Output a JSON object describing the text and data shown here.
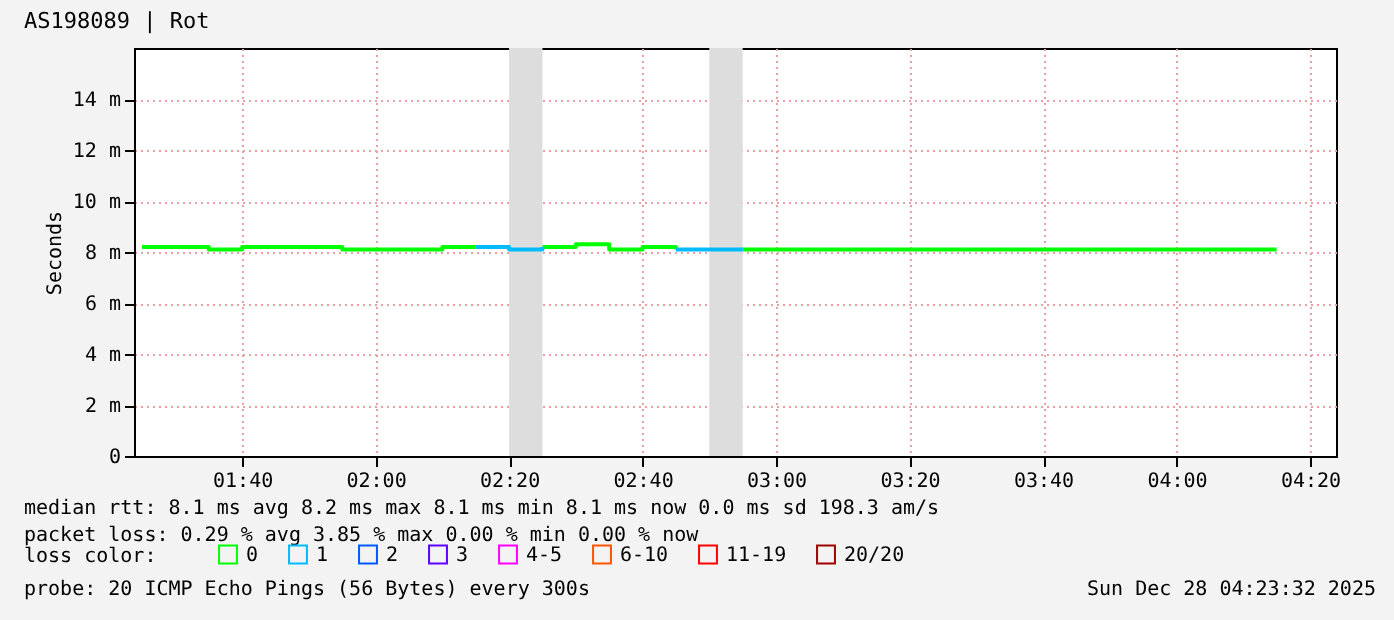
{
  "chart_data": {
    "type": "step",
    "title": "AS198089 | Rot",
    "ylabel": "Seconds",
    "legend_title": "loss color:",
    "x": [
      1.4167,
      1.5,
      1.5833,
      1.6667,
      1.75,
      1.8333,
      1.9167,
      2,
      2.0833,
      2.1667,
      2.25,
      2.3333,
      2.4167,
      2.5,
      2.5833,
      2.6667,
      2.75,
      2.8333,
      2.9167,
      3,
      3.0833,
      3.1667,
      3.25,
      3.3333,
      3.4167,
      3.5,
      3.5833,
      3.6667,
      3.75,
      3.8333,
      3.9167,
      4,
      4.0833,
      4.1667,
      4.25
    ],
    "series": [
      {
        "name": "0",
        "color": "#00ff00",
        "values": [
          8.2,
          8.2,
          8.1,
          8.2,
          8.2,
          8.2,
          8.1,
          8.1,
          8.1,
          8.2,
          8.2,
          null,
          8.2,
          8.3,
          8.1,
          8.2,
          8.1,
          null,
          8.1,
          8.1,
          8.1,
          8.1,
          8.1,
          8.1,
          8.1,
          8.1,
          8.1,
          8.1,
          8.1,
          8.1,
          8.1,
          8.1,
          8.1,
          8.1,
          8.1
        ]
      },
      {
        "name": "1",
        "color": "#00bbff",
        "values": [
          null,
          null,
          null,
          null,
          null,
          null,
          null,
          null,
          null,
          null,
          8.2,
          8.1,
          8.2,
          null,
          null,
          null,
          8.1,
          8.1,
          8.1,
          null,
          null,
          null,
          null,
          null,
          null,
          null,
          null,
          null,
          null,
          null,
          null,
          null,
          null,
          null,
          null
        ]
      },
      {
        "name": "2",
        "color": "#0059ff",
        "values": [
          null,
          null,
          null,
          null,
          null,
          null,
          null,
          null,
          null,
          null,
          null,
          null,
          null,
          null,
          null,
          null,
          null,
          null,
          null,
          null,
          null,
          null,
          null,
          null,
          null,
          null,
          null,
          null,
          null,
          null,
          null,
          null,
          null,
          null,
          null
        ]
      },
      {
        "name": "3",
        "color": "#5e00ff",
        "values": [
          null,
          null,
          null,
          null,
          null,
          null,
          null,
          null,
          null,
          null,
          null,
          null,
          null,
          null,
          null,
          null,
          null,
          null,
          null,
          null,
          null,
          null,
          null,
          null,
          null,
          null,
          null,
          null,
          null,
          null,
          null,
          null,
          null,
          null,
          null
        ]
      },
      {
        "name": "4-5",
        "color": "#ff00ff",
        "values": [
          null,
          null,
          null,
          null,
          null,
          null,
          null,
          null,
          null,
          null,
          null,
          null,
          null,
          null,
          null,
          null,
          null,
          null,
          null,
          null,
          null,
          null,
          null,
          null,
          null,
          null,
          null,
          null,
          null,
          null,
          null,
          null,
          null,
          null,
          null
        ]
      },
      {
        "name": "6-10",
        "color": "#ff5500",
        "values": [
          null,
          null,
          null,
          null,
          null,
          null,
          null,
          null,
          null,
          null,
          null,
          null,
          null,
          null,
          null,
          null,
          null,
          null,
          null,
          null,
          null,
          null,
          null,
          null,
          null,
          null,
          null,
          null,
          null,
          null,
          null,
          null,
          null,
          null,
          null
        ]
      },
      {
        "name": "11-19",
        "color": "#ff0000",
        "values": [
          null,
          null,
          null,
          null,
          null,
          null,
          null,
          null,
          null,
          null,
          null,
          null,
          null,
          null,
          null,
          null,
          null,
          null,
          null,
          null,
          null,
          null,
          null,
          null,
          null,
          null,
          null,
          null,
          null,
          null,
          null,
          null,
          null,
          null,
          null
        ]
      },
      {
        "name": "20/20",
        "color": "#a10000",
        "values": [
          null,
          null,
          null,
          null,
          null,
          null,
          null,
          null,
          null,
          null,
          null,
          null,
          null,
          null,
          null,
          null,
          null,
          null,
          null,
          null,
          null,
          null,
          null,
          null,
          null,
          null,
          null,
          null,
          null,
          null,
          null,
          null,
          null,
          null,
          null
        ]
      }
    ],
    "xlim": [
      1.3967,
      4.3983
    ],
    "xticks": [
      {
        "value": 1.6667,
        "label": "01:40"
      },
      {
        "value": 2,
        "label": "02:00"
      },
      {
        "value": 2.3333,
        "label": "02:20"
      },
      {
        "value": 2.6667,
        "label": "02:40"
      },
      {
        "value": 3,
        "label": "03:00"
      },
      {
        "value": 3.3333,
        "label": "03:20"
      },
      {
        "value": 3.6667,
        "label": "03:40"
      },
      {
        "value": 4,
        "label": "04:00"
      },
      {
        "value": 4.3333,
        "label": "04:20"
      }
    ],
    "ylim": [
      0,
      16
    ],
    "yticks": [
      0,
      {
        "value": 2,
        "label": "2 m"
      },
      {
        "value": 4,
        "label": "4 m"
      },
      {
        "value": 6,
        "label": "6 m"
      },
      {
        "value": 8,
        "label": "8 m"
      },
      {
        "value": 10,
        "label": "10 m"
      },
      {
        "value": 12,
        "label": "12 m"
      },
      {
        "value": 14,
        "label": "14 m"
      }
    ],
    "bands": [
      {
        "axis": "x",
        "from": 2.3333,
        "to": 2.4167,
        "color": "#dddddd"
      },
      {
        "axis": "x",
        "from": 2.8333,
        "to": 2.9167,
        "color": "#dddddd"
      }
    ],
    "grid": true,
    "legend": "bottom",
    "line_style": "solid",
    "marker": "none",
    "annotations": [
      "median rtt:  8.1 ms avg  8.2 ms max  8.1 ms min  8.1 ms now  0.0 ms sd  198.3   am/s",
      "packet loss: 0.29 % avg  3.85 % max  0.00 % min  0.00 % now",
      "probe:       20 ICMP Echo Pings (56 Bytes) every 300s",
      "Sun Dec 28 04:23:32 2025"
    ]
  }
}
